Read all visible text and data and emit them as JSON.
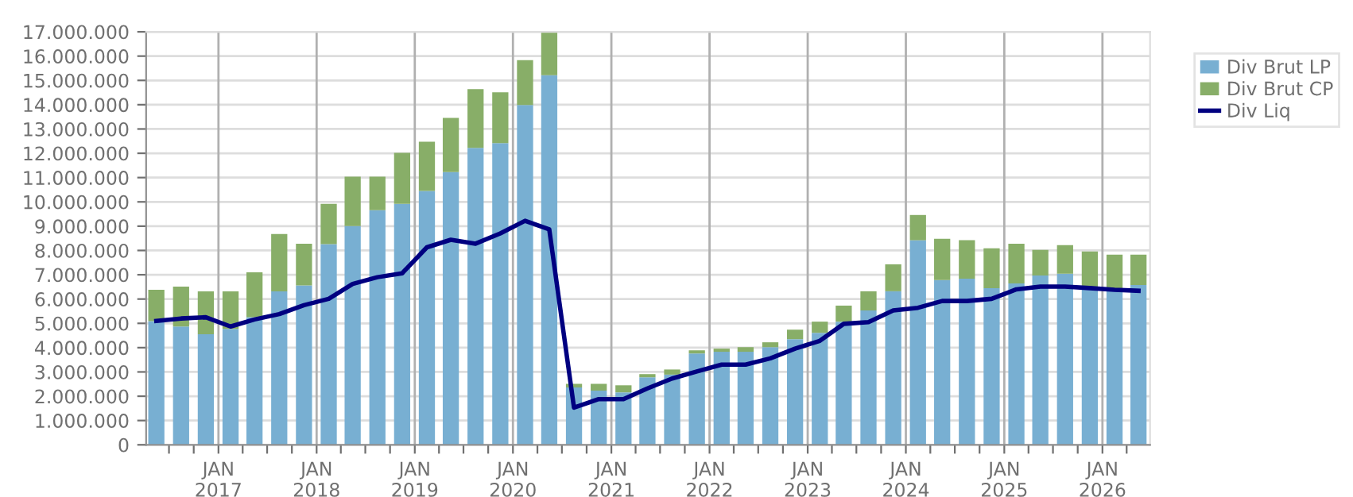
{
  "chart_data": {
    "type": "bar",
    "stacked": true,
    "x": [
      "2016-05-15",
      "2016-08-15",
      "2016-11-15",
      "2017-02-15",
      "2017-05-15",
      "2017-08-15",
      "2017-11-15",
      "2018-02-15",
      "2018-05-15",
      "2018-08-15",
      "2018-11-15",
      "2019-02-15",
      "2019-05-15",
      "2019-08-15",
      "2019-11-15",
      "2020-02-15",
      "2020-05-15",
      "2020-08-15",
      "2020-11-15",
      "2021-02-15",
      "2021-05-15",
      "2021-08-15",
      "2021-11-15",
      "2022-02-15",
      "2022-05-15",
      "2022-08-15",
      "2022-11-15",
      "2023-02-15",
      "2023-05-15",
      "2023-08-15",
      "2023-11-15",
      "2024-02-15",
      "2024-05-15",
      "2024-08-15",
      "2024-11-15",
      "2025-02-15",
      "2025-05-15",
      "2025-08-15",
      "2025-11-15",
      "2026-02-15",
      "2026-05-15"
    ],
    "series": [
      {
        "name": "Div Brut LP",
        "color": "#78afd2",
        "values": [
          5090000,
          4870000,
          4550000,
          4770000,
          5250000,
          6320000,
          6560000,
          8260000,
          9000000,
          9660000,
          9920000,
          10450000,
          11230000,
          12220000,
          12420000,
          13990000,
          15210000,
          2360000,
          2230000,
          2160000,
          2780000,
          2890000,
          3760000,
          3830000,
          3830000,
          4020000,
          4350000,
          4610000,
          5070000,
          5530000,
          6320000,
          8420000,
          6780000,
          6840000,
          6450000,
          6640000,
          6970000,
          7040000,
          6450000,
          6320000,
          6580000
        ]
      },
      {
        "name": "Div Brut CP",
        "color": "#88ae68",
        "values": [
          1290000,
          1640000,
          1770000,
          1550000,
          1850000,
          2360000,
          1720000,
          1660000,
          2040000,
          1380000,
          2100000,
          2030000,
          2230000,
          2420000,
          2090000,
          1840000,
          1790000,
          150000,
          280000,
          290000,
          130000,
          210000,
          130000,
          130000,
          190000,
          200000,
          390000,
          460000,
          660000,
          790000,
          1110000,
          1040000,
          1700000,
          1580000,
          1640000,
          1640000,
          1050000,
          1180000,
          1510000,
          1510000,
          1250000
        ]
      },
      {
        "name": "Div Liq",
        "type": "line",
        "color": "#000080",
        "values": [
          5100000,
          5200000,
          5250000,
          4870000,
          5160000,
          5380000,
          5750000,
          6010000,
          6620000,
          6900000,
          7060000,
          8130000,
          8440000,
          8280000,
          8700000,
          9220000,
          8870000,
          1530000,
          1880000,
          1880000,
          2320000,
          2730000,
          3020000,
          3300000,
          3300000,
          3560000,
          3960000,
          4280000,
          4980000,
          5050000,
          5530000,
          5640000,
          5920000,
          5920000,
          6010000,
          6400000,
          6510000,
          6510000,
          6450000,
          6380000,
          6340000
        ]
      }
    ],
    "xlim": [
      "2016-04-07",
      "2026-06-27"
    ],
    "xticks": [
      {
        "value": "2016-07-01",
        "label": null
      },
      {
        "value": "2016-10-01",
        "label": null
      },
      {
        "value": "2017-01-01",
        "label": "JAN\n2017"
      },
      {
        "value": "2017-04-01",
        "label": null
      },
      {
        "value": "2017-07-01",
        "label": null
      },
      {
        "value": "2017-10-01",
        "label": null
      },
      {
        "value": "2018-01-01",
        "label": "JAN\n2018"
      },
      {
        "value": "2018-04-01",
        "label": null
      },
      {
        "value": "2018-07-01",
        "label": null
      },
      {
        "value": "2018-10-01",
        "label": null
      },
      {
        "value": "2019-01-01",
        "label": "JAN\n2019"
      },
      {
        "value": "2019-04-01",
        "label": null
      },
      {
        "value": "2019-07-01",
        "label": null
      },
      {
        "value": "2019-10-01",
        "label": null
      },
      {
        "value": "2020-01-01",
        "label": "JAN\n2020"
      },
      {
        "value": "2020-04-01",
        "label": null
      },
      {
        "value": "2020-07-01",
        "label": null
      },
      {
        "value": "2020-10-01",
        "label": null
      },
      {
        "value": "2021-01-01",
        "label": "JAN\n2021"
      },
      {
        "value": "2021-04-01",
        "label": null
      },
      {
        "value": "2021-07-01",
        "label": null
      },
      {
        "value": "2021-10-01",
        "label": null
      },
      {
        "value": "2022-01-01",
        "label": "JAN\n2022"
      },
      {
        "value": "2022-04-01",
        "label": null
      },
      {
        "value": "2022-07-01",
        "label": null
      },
      {
        "value": "2022-10-01",
        "label": null
      },
      {
        "value": "2023-01-01",
        "label": "JAN\n2023"
      },
      {
        "value": "2023-04-01",
        "label": null
      },
      {
        "value": "2023-07-01",
        "label": null
      },
      {
        "value": "2023-10-01",
        "label": null
      },
      {
        "value": "2024-01-01",
        "label": "JAN\n2024"
      },
      {
        "value": "2024-04-01",
        "label": null
      },
      {
        "value": "2024-07-01",
        "label": null
      },
      {
        "value": "2024-10-01",
        "label": null
      },
      {
        "value": "2025-01-01",
        "label": "JAN\n2025"
      },
      {
        "value": "2025-04-01",
        "label": null
      },
      {
        "value": "2025-07-01",
        "label": null
      },
      {
        "value": "2025-10-01",
        "label": null
      },
      {
        "value": "2026-01-01",
        "label": "JAN\n2026"
      },
      {
        "value": "2026-04-01",
        "label": null
      }
    ],
    "ylim": [
      0,
      17000000
    ],
    "yticks": [
      0,
      {
        "value": 1000000,
        "label": "1.000.000"
      },
      {
        "value": 2000000,
        "label": "2.000.000"
      },
      {
        "value": 3000000,
        "label": "3.000.000"
      },
      {
        "value": 4000000,
        "label": "4.000.000"
      },
      {
        "value": 5000000,
        "label": "5.000.000"
      },
      {
        "value": 6000000,
        "label": "6.000.000"
      },
      {
        "value": 7000000,
        "label": "7.000.000"
      },
      {
        "value": 8000000,
        "label": "8.000.000"
      },
      {
        "value": 9000000,
        "label": "9.000.000"
      },
      {
        "value": 10000000,
        "label": "10.000.000"
      },
      {
        "value": 11000000,
        "label": "11.000.000"
      },
      {
        "value": 12000000,
        "label": "12.000.000"
      },
      {
        "value": 13000000,
        "label": "13.000.000"
      },
      {
        "value": 14000000,
        "label": "14.000.000"
      },
      {
        "value": 15000000,
        "label": "15.000.000"
      },
      {
        "value": 16000000,
        "label": "16.000.000"
      },
      {
        "value": 17000000,
        "label": "17.000.000"
      }
    ],
    "grid": true,
    "legend": "top right",
    "marker": "none",
    "line_style": "solid"
  }
}
